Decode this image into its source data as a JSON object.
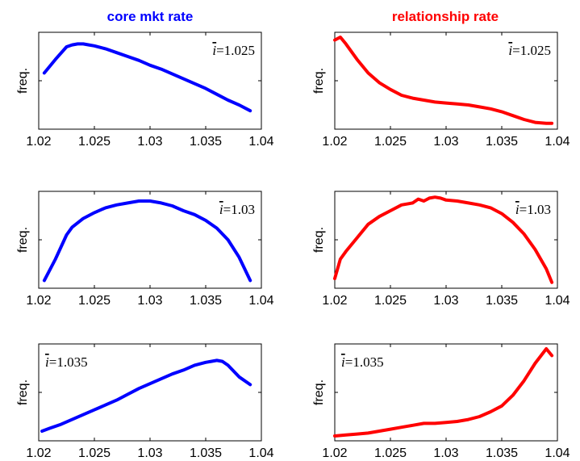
{
  "chart_data": [
    {
      "type": "line",
      "column_title": "core mkt rate",
      "ylabel": "freq.",
      "annotation": "=1.025",
      "ibar_symbol": "i",
      "color": "#0000ff",
      "xlim": [
        1.02,
        1.04
      ],
      "ylim": [
        0,
        1
      ],
      "xticks": [
        "1.02",
        "1.025",
        "1.03",
        "1.035",
        "1.04"
      ],
      "x": [
        1.0205,
        1.0215,
        1.0225,
        1.023,
        1.0235,
        1.024,
        1.0245,
        1.025,
        1.026,
        1.027,
        1.028,
        1.029,
        1.03,
        1.031,
        1.032,
        1.033,
        1.034,
        1.035,
        1.036,
        1.037,
        1.038,
        1.039
      ],
      "y": [
        0.58,
        0.72,
        0.85,
        0.87,
        0.88,
        0.88,
        0.87,
        0.86,
        0.83,
        0.79,
        0.75,
        0.71,
        0.66,
        0.62,
        0.57,
        0.52,
        0.47,
        0.42,
        0.36,
        0.3,
        0.25,
        0.19
      ]
    },
    {
      "type": "line",
      "column_title": "relationship rate",
      "ylabel": "freq.",
      "annotation": "=1.025",
      "ibar_symbol": "i",
      "color": "#ff0000",
      "xlim": [
        1.02,
        1.04
      ],
      "ylim": [
        0,
        1
      ],
      "xticks": [
        "1.02",
        "1.025",
        "1.03",
        "1.035",
        "1.04"
      ],
      "x": [
        1.02,
        1.0205,
        1.021,
        1.022,
        1.023,
        1.024,
        1.025,
        1.026,
        1.027,
        1.028,
        1.029,
        1.03,
        1.031,
        1.032,
        1.033,
        1.034,
        1.035,
        1.036,
        1.037,
        1.038,
        1.039,
        1.0395
      ],
      "y": [
        0.92,
        0.95,
        0.88,
        0.72,
        0.58,
        0.48,
        0.41,
        0.35,
        0.32,
        0.3,
        0.28,
        0.27,
        0.26,
        0.25,
        0.23,
        0.21,
        0.18,
        0.14,
        0.1,
        0.07,
        0.06,
        0.06
      ]
    },
    {
      "type": "line",
      "column_title": "",
      "ylabel": "freq.",
      "annotation": "=1.03",
      "ibar_symbol": "i",
      "color": "#0000ff",
      "xlim": [
        1.02,
        1.04
      ],
      "ylim": [
        0,
        1
      ],
      "xticks": [
        "1.02",
        "1.025",
        "1.03",
        "1.035",
        "1.04"
      ],
      "x": [
        1.0205,
        1.0215,
        1.0225,
        1.023,
        1.024,
        1.025,
        1.026,
        1.027,
        1.028,
        1.029,
        1.03,
        1.031,
        1.032,
        1.033,
        1.034,
        1.035,
        1.036,
        1.037,
        1.038,
        1.039
      ],
      "y": [
        0.08,
        0.3,
        0.55,
        0.63,
        0.72,
        0.78,
        0.83,
        0.86,
        0.88,
        0.9,
        0.9,
        0.88,
        0.85,
        0.8,
        0.76,
        0.7,
        0.62,
        0.5,
        0.32,
        0.08
      ]
    },
    {
      "type": "line",
      "column_title": "",
      "ylabel": "freq.",
      "annotation": "=1.03",
      "ibar_symbol": "i",
      "color": "#ff0000",
      "xlim": [
        1.02,
        1.04
      ],
      "ylim": [
        0,
        1
      ],
      "xticks": [
        "1.02",
        "1.025",
        "1.03",
        "1.035",
        "1.04"
      ],
      "x": [
        1.02,
        1.0205,
        1.021,
        1.022,
        1.023,
        1.024,
        1.025,
        1.026,
        1.027,
        1.0275,
        1.028,
        1.0285,
        1.029,
        1.0295,
        1.03,
        1.031,
        1.032,
        1.033,
        1.034,
        1.035,
        1.036,
        1.037,
        1.038,
        1.0385,
        1.039,
        1.0395
      ],
      "y": [
        0.1,
        0.3,
        0.38,
        0.52,
        0.66,
        0.74,
        0.8,
        0.86,
        0.88,
        0.92,
        0.9,
        0.93,
        0.94,
        0.93,
        0.91,
        0.9,
        0.88,
        0.86,
        0.83,
        0.77,
        0.68,
        0.56,
        0.4,
        0.3,
        0.2,
        0.06
      ]
    },
    {
      "type": "line",
      "column_title": "",
      "ylabel": "freq.",
      "annotation": "=1.035",
      "ibar_symbol": "i",
      "color": "#0000ff",
      "xlim": [
        1.02,
        1.04
      ],
      "ylim": [
        0,
        1
      ],
      "xticks": [
        "1.02",
        "1.025",
        "1.03",
        "1.035",
        "1.04"
      ],
      "x": [
        1.0203,
        1.021,
        1.022,
        1.023,
        1.024,
        1.025,
        1.026,
        1.027,
        1.028,
        1.029,
        1.03,
        1.031,
        1.032,
        1.033,
        1.034,
        1.035,
        1.0355,
        1.036,
        1.0365,
        1.037,
        1.038,
        1.039
      ],
      "y": [
        0.1,
        0.13,
        0.17,
        0.22,
        0.27,
        0.32,
        0.37,
        0.42,
        0.48,
        0.54,
        0.59,
        0.64,
        0.69,
        0.73,
        0.78,
        0.81,
        0.82,
        0.83,
        0.82,
        0.78,
        0.66,
        0.58
      ]
    },
    {
      "type": "line",
      "column_title": "",
      "ylabel": "freq.",
      "annotation": "=1.035",
      "ibar_symbol": "i",
      "color": "#ff0000",
      "xlim": [
        1.02,
        1.04
      ],
      "ylim": [
        0,
        1
      ],
      "xticks": [
        "1.02",
        "1.025",
        "1.03",
        "1.035",
        "1.04"
      ],
      "x": [
        1.02,
        1.021,
        1.022,
        1.023,
        1.024,
        1.025,
        1.026,
        1.027,
        1.028,
        1.029,
        1.03,
        1.031,
        1.032,
        1.033,
        1.034,
        1.035,
        1.036,
        1.037,
        1.038,
        1.039,
        1.0395
      ],
      "y": [
        0.05,
        0.06,
        0.07,
        0.08,
        0.1,
        0.12,
        0.14,
        0.16,
        0.18,
        0.18,
        0.19,
        0.2,
        0.22,
        0.25,
        0.3,
        0.36,
        0.47,
        0.62,
        0.8,
        0.95,
        0.88
      ]
    }
  ]
}
